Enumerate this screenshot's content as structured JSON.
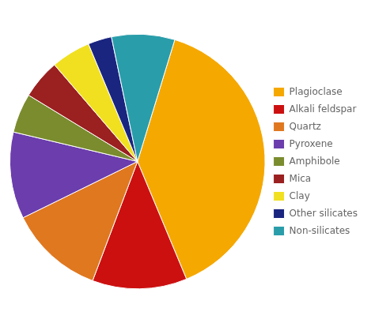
{
  "chart_data": {
    "type": "pie",
    "categories": [
      "Plagioclase",
      "Alkali feldspar",
      "Quartz",
      "Pyroxene",
      "Amphibole",
      "Mica",
      "Clay",
      "Other silicates",
      "Non-silicates"
    ],
    "values": [
      39,
      12,
      12,
      11,
      5,
      5,
      5,
      3,
      8
    ],
    "colors": [
      "#F5A800",
      "#CC1010",
      "#E07820",
      "#6B3DAD",
      "#7A8C2E",
      "#9B2020",
      "#F0E020",
      "#1A2580",
      "#2A9DAA"
    ],
    "legend": "right"
  }
}
